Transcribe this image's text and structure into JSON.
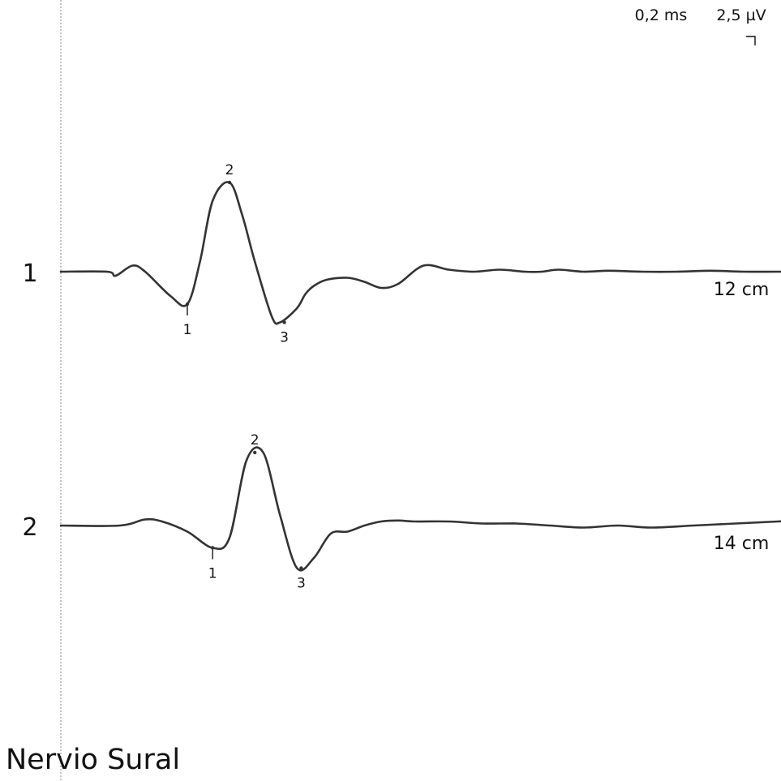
{
  "scale": {
    "time": "0,2 ms",
    "amplitude": "2,5 µV"
  },
  "title": "Nervio Sural",
  "chart_data": {
    "type": "line",
    "title": "Nervio Sural",
    "x_unit": "ms",
    "y_unit": "µV",
    "x_per_div": "0,2 ms",
    "y_per_div": "2,5 µV",
    "series": [
      {
        "name": "1",
        "distance": "12 cm",
        "x": [
          0.0,
          0.11,
          0.13,
          0.17,
          0.2,
          0.26,
          0.3,
          0.33,
          0.36,
          0.4,
          0.43,
          0.46,
          0.5,
          0.52,
          0.56,
          0.58,
          0.6,
          0.63,
          0.68,
          0.72,
          0.76,
          0.8,
          0.86,
          0.92,
          0.98,
          1.04,
          1.1,
          1.14,
          1.18,
          1.24,
          1.3,
          1.38,
          1.46,
          1.54,
          1.62,
          1.7,
          1.8
        ],
        "y": [
          0.0,
          0.0,
          -0.2,
          0.3,
          0.0,
          -1.2,
          -1.6,
          0.5,
          3.5,
          4.4,
          2.8,
          0.5,
          -2.2,
          -2.5,
          -1.8,
          -1.1,
          -0.7,
          -0.4,
          -0.3,
          -0.5,
          -0.8,
          -0.6,
          0.3,
          0.1,
          0.0,
          0.1,
          0.0,
          0.0,
          0.1,
          0.0,
          0.05,
          0.0,
          0.0,
          0.05,
          0.0,
          0.0,
          0.0
        ],
        "markers": [
          {
            "label": "1",
            "x": 0.3,
            "y": -1.6
          },
          {
            "label": "2",
            "x": 0.4,
            "y": 4.4
          },
          {
            "label": "3",
            "x": 0.53,
            "y": -2.5
          }
        ]
      },
      {
        "name": "2",
        "distance": "14 cm",
        "x": [
          0.0,
          0.14,
          0.2,
          0.24,
          0.3,
          0.36,
          0.4,
          0.44,
          0.48,
          0.52,
          0.56,
          0.6,
          0.64,
          0.68,
          0.72,
          0.76,
          0.8,
          0.84,
          0.92,
          1.0,
          1.08,
          1.16,
          1.24,
          1.32,
          1.4,
          1.5,
          1.6,
          1.7,
          1.8
        ],
        "y": [
          0.0,
          0.0,
          0.3,
          0.2,
          -0.3,
          -1.1,
          -0.6,
          3.2,
          3.6,
          0.5,
          -2.1,
          -1.6,
          -0.4,
          -0.3,
          0.0,
          0.2,
          0.25,
          0.2,
          0.2,
          0.1,
          0.1,
          0.0,
          -0.1,
          0.0,
          -0.1,
          0.0,
          0.1,
          0.2,
          0.3
        ],
        "markers": [
          {
            "label": "1",
            "x": 0.36,
            "y": -1.1
          },
          {
            "label": "2",
            "x": 0.46,
            "y": 3.6
          },
          {
            "label": "3",
            "x": 0.57,
            "y": -2.1
          }
        ]
      }
    ]
  }
}
